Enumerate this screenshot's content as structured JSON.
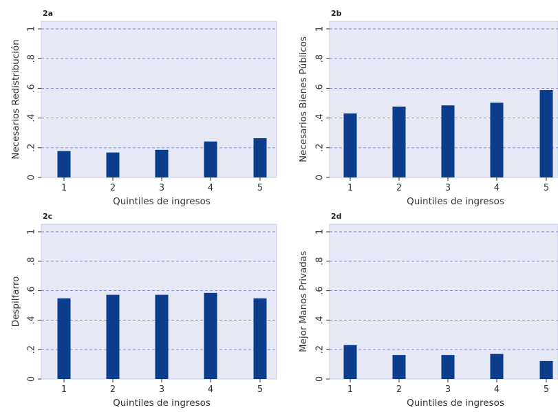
{
  "colors": {
    "bar": "#0b3d8c",
    "plot_bg": "#e6e8f5",
    "grid": "#7b86c4",
    "axis": "#333333"
  },
  "chart_data": [
    {
      "panel": "2a",
      "type": "bar",
      "categories": [
        "1",
        "2",
        "3",
        "4",
        "5"
      ],
      "values": [
        0.178,
        0.168,
        0.186,
        0.242,
        0.264
      ],
      "xlabel": "Quintiles de ingresos",
      "ylabel": "Necesarios Redistribución",
      "ylim": [
        0,
        1
      ],
      "yticks": [
        "0",
        ".2",
        ".4",
        ".6",
        ".8",
        "1"
      ],
      "grid": true
    },
    {
      "panel": "2b",
      "type": "bar",
      "categories": [
        "1",
        "2",
        "3",
        "4",
        "5"
      ],
      "values": [
        0.431,
        0.477,
        0.485,
        0.503,
        0.588
      ],
      "xlabel": "Quintiles de ingresos",
      "ylabel": "Necesarios Bienes Públicos",
      "ylim": [
        0,
        1
      ],
      "yticks": [
        "0",
        ".2",
        ".4",
        ".6",
        ".8",
        "1"
      ],
      "grid": true
    },
    {
      "panel": "2c",
      "type": "bar",
      "categories": [
        "1",
        "2",
        "3",
        "4",
        "5"
      ],
      "values": [
        0.548,
        0.572,
        0.572,
        0.585,
        0.548
      ],
      "xlabel": "Quintiles de ingresos",
      "ylabel": "Despilfarro",
      "ylim": [
        0,
        1
      ],
      "yticks": [
        "0",
        ".2",
        ".4",
        ".6",
        ".8",
        "1"
      ],
      "grid": true
    },
    {
      "panel": "2d",
      "type": "bar",
      "categories": [
        "1",
        "2",
        "3",
        "4",
        "5"
      ],
      "values": [
        0.23,
        0.163,
        0.163,
        0.17,
        0.122
      ],
      "xlabel": "Quintiles de ingresos",
      "ylabel": "Mejor Manos Privadas",
      "ylim": [
        0,
        1
      ],
      "yticks": [
        "0",
        ".2",
        ".4",
        ".6",
        ".8",
        "1"
      ],
      "grid": true
    }
  ]
}
